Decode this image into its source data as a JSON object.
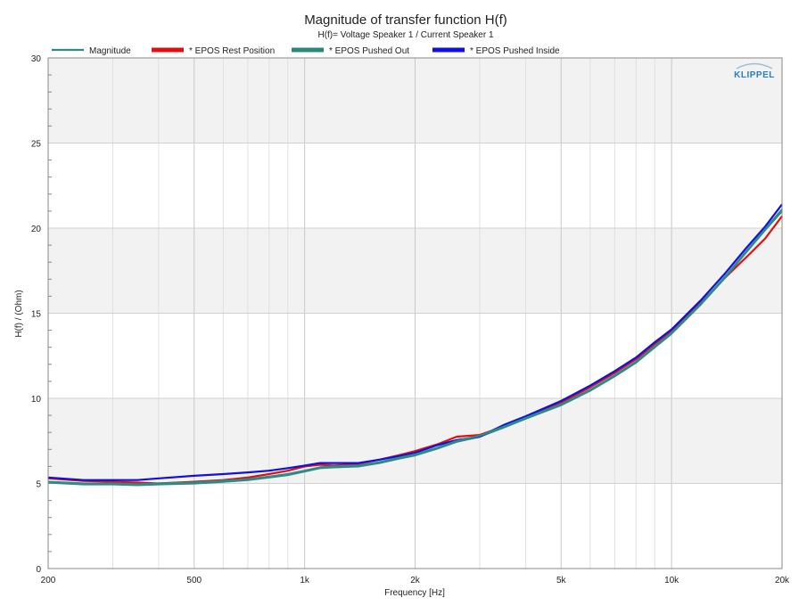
{
  "chart_data": {
    "type": "line",
    "title": "Magnitude of transfer function H(f)",
    "subtitle": "H(f)= Voltage Speaker 1 / Current Speaker 1",
    "xlabel": "Frequency [Hz]",
    "ylabel": "H(f) / (Ohm)",
    "x_scale": "log",
    "xlim": [
      200,
      20000
    ],
    "ylim": [
      0,
      30
    ],
    "x_ticks": [
      {
        "value": 200,
        "label": "200"
      },
      {
        "value": 500,
        "label": "500"
      },
      {
        "value": 1000,
        "label": "1k"
      },
      {
        "value": 2000,
        "label": "2k"
      },
      {
        "value": 5000,
        "label": "5k"
      },
      {
        "value": 10000,
        "label": "10k"
      },
      {
        "value": 20000,
        "label": "20k"
      }
    ],
    "y_ticks": [
      {
        "value": 0,
        "label": "0"
      },
      {
        "value": 5,
        "label": "5"
      },
      {
        "value": 10,
        "label": "10"
      },
      {
        "value": 15,
        "label": "15"
      },
      {
        "value": 20,
        "label": "20"
      },
      {
        "value": 25,
        "label": "25"
      },
      {
        "value": 30,
        "label": "30"
      }
    ],
    "grid": true,
    "legend_position": "top",
    "logo": "KLIPPEL",
    "legend": [
      {
        "label": "Magnitude",
        "color": "#2e8b8b",
        "style": "thin"
      },
      {
        "label": "* EPOS Rest Position",
        "color": "#e01010",
        "style": "thick"
      },
      {
        "label": "* EPOS Pushed Out",
        "color": "#2a8a7a",
        "style": "thick"
      },
      {
        "label": "* EPOS Pushed Inside",
        "color": "#1010e0",
        "style": "thick"
      }
    ],
    "series": [
      {
        "name": "* EPOS Rest Position",
        "color": "#e01010",
        "x": [
          200,
          250,
          300,
          350,
          400,
          500,
          600,
          700,
          800,
          900,
          1000,
          1100,
          1200,
          1400,
          1600,
          1800,
          2000,
          2300,
          2600,
          3000,
          3500,
          4000,
          5000,
          6000,
          7000,
          8000,
          9000,
          10000,
          12000,
          14000,
          16000,
          18000,
          20000
        ],
        "y": [
          5.3,
          5.15,
          5.1,
          5.05,
          5.0,
          5.1,
          5.2,
          5.35,
          5.55,
          5.75,
          6.0,
          6.1,
          6.05,
          6.15,
          6.4,
          6.65,
          6.9,
          7.3,
          7.75,
          7.85,
          8.35,
          8.9,
          9.75,
          10.65,
          11.5,
          12.3,
          13.2,
          13.95,
          15.6,
          17.1,
          18.3,
          19.4,
          20.7
        ]
      },
      {
        "name": "* EPOS Pushed Out",
        "color": "#2a8a7a",
        "x": [
          200,
          250,
          300,
          350,
          400,
          500,
          600,
          700,
          800,
          900,
          1000,
          1100,
          1200,
          1400,
          1600,
          1800,
          2000,
          2300,
          2600,
          3000,
          3500,
          4000,
          5000,
          6000,
          7000,
          8000,
          9000,
          10000,
          12000,
          14000,
          16000,
          18000,
          20000
        ],
        "y": [
          5.05,
          4.95,
          4.95,
          4.9,
          4.95,
          5.0,
          5.1,
          5.2,
          5.35,
          5.5,
          5.7,
          5.9,
          5.95,
          6.0,
          6.2,
          6.45,
          6.65,
          7.05,
          7.45,
          7.75,
          8.3,
          8.8,
          9.6,
          10.45,
          11.3,
          12.1,
          13.0,
          13.8,
          15.5,
          17.1,
          18.6,
          19.9,
          21.0
        ]
      },
      {
        "name": "* EPOS Pushed Inside",
        "color": "#1010e0",
        "x": [
          200,
          250,
          300,
          350,
          400,
          500,
          600,
          700,
          800,
          900,
          1000,
          1100,
          1200,
          1400,
          1600,
          1800,
          2000,
          2300,
          2600,
          3000,
          3500,
          4000,
          5000,
          6000,
          7000,
          8000,
          9000,
          10000,
          12000,
          14000,
          16000,
          18000,
          20000
        ],
        "y": [
          5.35,
          5.2,
          5.2,
          5.2,
          5.3,
          5.45,
          5.55,
          5.65,
          5.75,
          5.9,
          6.05,
          6.2,
          6.2,
          6.2,
          6.4,
          6.6,
          6.8,
          7.25,
          7.55,
          7.75,
          8.45,
          8.95,
          9.85,
          10.75,
          11.6,
          12.4,
          13.3,
          14.05,
          15.75,
          17.35,
          18.85,
          20.1,
          21.4
        ]
      },
      {
        "name": "Magnitude",
        "color": "#2e8b8b",
        "x": [
          200,
          250,
          300,
          350,
          400,
          500,
          600,
          700,
          800,
          900,
          1000,
          1100,
          1200,
          1400,
          1600,
          1800,
          2000,
          2300,
          2600,
          3000,
          3500,
          4000,
          5000,
          6000,
          7000,
          8000,
          9000,
          10000,
          12000,
          14000,
          16000,
          18000,
          20000
        ],
        "y": [
          5.1,
          5.0,
          5.0,
          4.95,
          5.0,
          5.05,
          5.15,
          5.25,
          5.4,
          5.55,
          5.75,
          5.95,
          6.0,
          6.05,
          6.25,
          6.5,
          6.7,
          7.1,
          7.5,
          7.8,
          8.35,
          8.85,
          9.65,
          10.5,
          11.35,
          12.15,
          13.05,
          13.85,
          15.55,
          17.15,
          18.65,
          19.95,
          21.1
        ]
      }
    ]
  }
}
